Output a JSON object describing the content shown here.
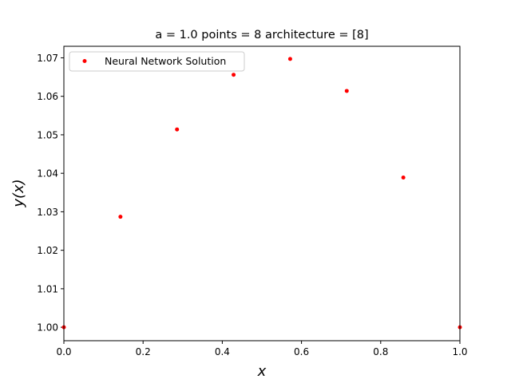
{
  "chart_data": {
    "type": "scatter",
    "title": "a = 1.0 points = 8 architecture = [8]",
    "xlabel": "x",
    "ylabel": "y(x)",
    "xlim": [
      0.0,
      1.0
    ],
    "ylim": [
      0.9965,
      1.073
    ],
    "x_ticks": [
      0.0,
      0.2,
      0.4,
      0.6,
      0.8,
      1.0
    ],
    "x_tick_labels": [
      "0.0",
      "0.2",
      "0.4",
      "0.6",
      "0.8",
      "1.0"
    ],
    "y_ticks": [
      1.0,
      1.01,
      1.02,
      1.03,
      1.04,
      1.05,
      1.06,
      1.07
    ],
    "y_tick_labels": [
      "1.00",
      "1.01",
      "1.02",
      "1.03",
      "1.04",
      "1.05",
      "1.06",
      "1.07"
    ],
    "grid": false,
    "legend_position": "upper-left",
    "series": [
      {
        "name": "Neural Network Solution",
        "color": "#ff0000",
        "marker": "point",
        "x": [
          0.0,
          0.142857,
          0.285714,
          0.428571,
          0.571429,
          0.714286,
          0.857143,
          1.0
        ],
        "y": [
          1.0,
          1.0287,
          1.0514,
          1.0656,
          1.0697,
          1.0614,
          1.0389,
          1.0
        ]
      }
    ]
  }
}
